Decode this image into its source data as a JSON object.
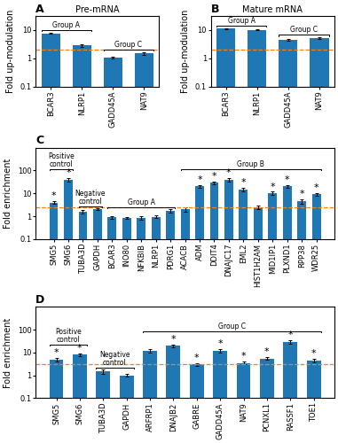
{
  "chart_data": [
    {
      "type": "bar",
      "panel_label": "A",
      "title": "Pre-mRNA",
      "categories": [
        "BCAR3",
        "NLRP1",
        "GADD45A",
        "NAT9"
      ],
      "values": [
        7.5,
        2.8,
        1.05,
        1.5
      ],
      "errors": [
        0.4,
        0.35,
        0.08,
        0.15
      ],
      "ylabel": "Fold up-modulation",
      "log": "y",
      "ylim": [
        0.1,
        30
      ],
      "yticks": [
        0.1,
        1,
        10
      ],
      "reference_line": 2.0,
      "brackets": [
        {
          "text": "Group A",
          "from": "BCAR3",
          "to": "NLRP1"
        },
        {
          "text": "Group C",
          "from": "GADD45A",
          "to": "NAT9"
        }
      ]
    },
    {
      "type": "bar",
      "panel_label": "B",
      "title": "Mature mRNA",
      "categories": [
        "BCAR3",
        "NLRP1",
        "GADD45A",
        "NAT9"
      ],
      "values": [
        11.0,
        10.0,
        4.5,
        5.0
      ],
      "errors": [
        0.5,
        0.6,
        0.3,
        0.3
      ],
      "ylabel": "Fold up-modulation",
      "log": "y",
      "ylim": [
        0.1,
        30
      ],
      "yticks": [
        0.1,
        1,
        10
      ],
      "reference_line": 2.0,
      "brackets": [
        {
          "text": "Group A",
          "from": "BCAR3",
          "to": "NLRP1"
        },
        {
          "text": "Group C",
          "from": "GADD45A",
          "to": "NAT9"
        }
      ]
    },
    {
      "type": "bar",
      "panel_label": "C",
      "categories": [
        "SMG5",
        "SMG6",
        "TUBA3D",
        "GAPDH",
        "BCAR3",
        "INO80",
        "NFKBIB",
        "NLRP1",
        "PDRG1",
        "ACACB",
        "ADM",
        "DDIT4",
        "DNAJC17",
        "EML2",
        "HIST1H2AM",
        "MID1IP1",
        "PLXND1",
        "RPP38",
        "WDR25"
      ],
      "values": [
        4.0,
        40.0,
        1.6,
        2.0,
        0.9,
        0.85,
        0.85,
        0.95,
        1.7,
        2.0,
        20.0,
        30.0,
        40.0,
        15.0,
        2.5,
        10.0,
        20.0,
        4.5,
        9.0
      ],
      "errors": [
        0.6,
        6.0,
        0.25,
        0.2,
        0.15,
        0.1,
        0.12,
        0.12,
        0.3,
        0.4,
        3.0,
        4.0,
        6.0,
        2.5,
        0.4,
        1.8,
        3.0,
        0.9,
        1.5
      ],
      "significance": [
        "*",
        "*",
        null,
        null,
        null,
        null,
        null,
        null,
        null,
        null,
        "*",
        "*",
        "*",
        "*",
        null,
        "*",
        "*",
        "*",
        "*"
      ],
      "ylabel": "Fold enrichment",
      "log": "y",
      "ylim": [
        0.1,
        1000
      ],
      "yticks": [
        0.1,
        1,
        10,
        100
      ],
      "reference_line": 2.5,
      "brackets": [
        {
          "text": "Positive\ncontrol",
          "from": "SMG5",
          "to": "SMG6"
        },
        {
          "text": "Negative\ncontrol",
          "from": "TUBA3D",
          "to": "GAPDH"
        },
        {
          "text": "Group A",
          "from": "BCAR3",
          "to": "PDRG1"
        },
        {
          "text": "Group B",
          "from": "ACACB",
          "to": "WDR25"
        }
      ]
    },
    {
      "type": "bar",
      "panel_label": "D",
      "categories": [
        "SMG5",
        "SMG6",
        "TUBA3D",
        "GAPDH",
        "ARFRP1",
        "DNAJB2",
        "GABRE",
        "GADD45A",
        "NAT9",
        "PCNXL1",
        "RASSF1",
        "TOE1"
      ],
      "values": [
        5.0,
        8.0,
        1.5,
        1.0,
        12.0,
        20.0,
        3.0,
        12.0,
        3.5,
        5.5,
        30.0,
        4.5
      ],
      "errors": [
        0.8,
        1.2,
        0.3,
        0.15,
        2.0,
        3.0,
        0.5,
        2.0,
        0.5,
        0.8,
        5.0,
        0.7
      ],
      "significance": [
        "*",
        "*",
        null,
        null,
        null,
        "*",
        "*",
        "*",
        "*",
        "*",
        "*",
        "*"
      ],
      "ylabel": "Fold enrichment",
      "log": "y",
      "ylim": [
        0.1,
        1000
      ],
      "yticks": [
        0.1,
        1,
        10,
        100
      ],
      "reference_line": 3.0,
      "brackets": [
        {
          "text": "Positive\ncontrol",
          "from": "SMG5",
          "to": "SMG6"
        },
        {
          "text": "Negative\ncontrol",
          "from": "TUBA3D",
          "to": "GAPDH"
        },
        {
          "text": "Group C",
          "from": "ARFRP1",
          "to": "TOE1"
        }
      ]
    }
  ]
}
